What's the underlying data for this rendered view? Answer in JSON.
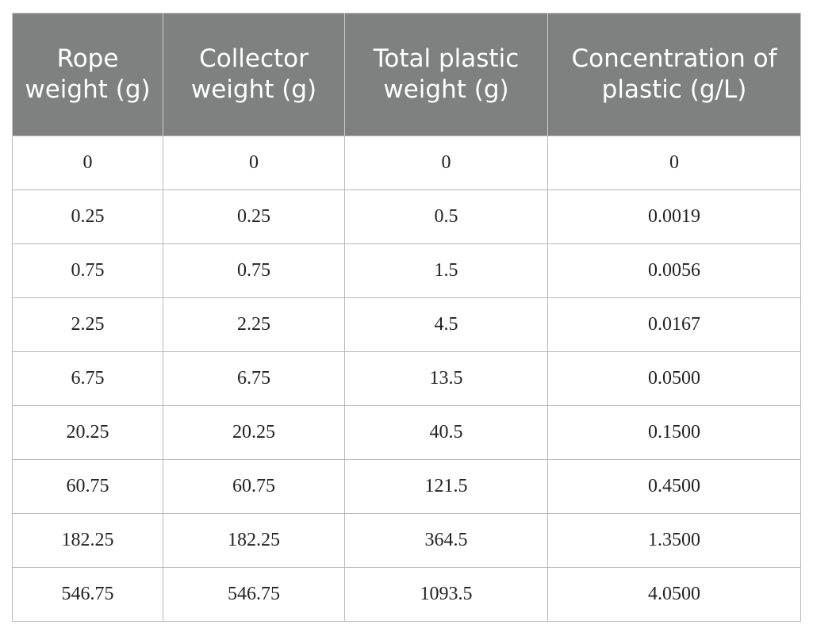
{
  "table": {
    "header": [
      "Rope weight (g)",
      "Collector weight (g)",
      "Total plastic weight (g)",
      "Concentration of plastic (g/L)"
    ],
    "rows": [
      [
        "0",
        "0",
        "0",
        "0"
      ],
      [
        "0.25",
        "0.25",
        "0.5",
        "0.0019"
      ],
      [
        "0.75",
        "0.75",
        "1.5",
        "0.0056"
      ],
      [
        "2.25",
        "2.25",
        "4.5",
        "0.0167"
      ],
      [
        "6.75",
        "6.75",
        "13.5",
        "0.0500"
      ],
      [
        "20.25",
        "20.25",
        "40.5",
        "0.1500"
      ],
      [
        "60.75",
        "60.75",
        "121.5",
        "0.4500"
      ],
      [
        "182.25",
        "182.25",
        "364.5",
        "1.3500"
      ],
      [
        "546.75",
        "546.75",
        "1093.5",
        "4.0500"
      ]
    ]
  }
}
